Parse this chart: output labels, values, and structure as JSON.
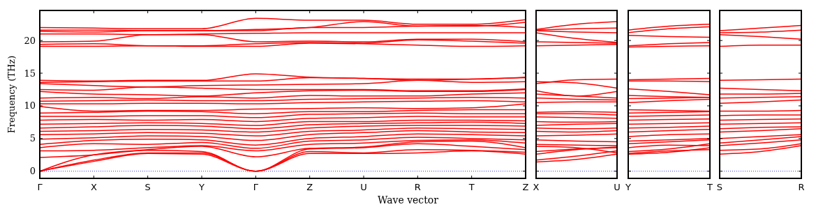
{
  "chart_data": [
    {
      "type": "line",
      "ylabel": "Frequency (THz)",
      "xlabel": "Wave vector",
      "categories": [
        "Γ",
        "X",
        "S",
        "Y",
        "Γ",
        "Z",
        "U",
        "R",
        "T",
        "Z"
      ],
      "ylim": [
        -1.1,
        24.6
      ],
      "yticks": [
        0,
        5,
        10,
        15,
        20
      ],
      "grid": false,
      "marker": "none",
      "line_style": "solid",
      "ref_lines": [
        {
          "axis": "y",
          "value": 0,
          "color": "#0000ff",
          "line_style": "dotted"
        }
      ],
      "series": [
        {
          "color": "#ff0000",
          "values": [
            0,
            1.5,
            2.7,
            2.6,
            0,
            2.7,
            2.7,
            2.8,
            3.1,
            2.6
          ]
        },
        {
          "color": "#ff0000",
          "values": [
            0,
            1.7,
            2.8,
            2.8,
            0,
            3.0,
            2.8,
            3.3,
            3.2,
            2.9
          ]
        },
        {
          "color": "#ff0000",
          "values": [
            0,
            2.5,
            3.2,
            3.0,
            0,
            3.4,
            3.6,
            4.2,
            3.8,
            3.3
          ]
        },
        {
          "color": "#ff0000",
          "values": [
            2.1,
            2.5,
            3.3,
            3.8,
            2.2,
            3.5,
            3.7,
            4.5,
            4.6,
            3.6
          ]
        },
        {
          "color": "#ff0000",
          "values": [
            3.1,
            3.2,
            3.6,
            3.9,
            3.1,
            4.1,
            4.3,
            4.7,
            4.8,
            4.3
          ]
        },
        {
          "color": "#ff0000",
          "values": [
            3.6,
            4.2,
            4.1,
            4.4,
            3.5,
            4.6,
            4.8,
            5.2,
            5.0,
            4.8
          ]
        },
        {
          "color": "#ff0000",
          "values": [
            4.1,
            4.7,
            4.9,
            4.8,
            4.0,
            5.0,
            5.3,
            5.7,
            5.6,
            5.4
          ]
        },
        {
          "color": "#ff0000",
          "values": [
            4.9,
            5.1,
            5.4,
            5.3,
            4.7,
            5.6,
            5.9,
            6.2,
            6.0,
            5.9
          ]
        },
        {
          "color": "#ff0000",
          "values": [
            5.6,
            5.7,
            5.9,
            5.8,
            5.4,
            6.1,
            6.3,
            6.6,
            6.5,
            6.4
          ]
        },
        {
          "color": "#ff0000",
          "values": [
            6.1,
            6.2,
            6.4,
            6.3,
            6.0,
            6.6,
            6.9,
            7.0,
            7.0,
            6.9
          ]
        },
        {
          "color": "#ff0000",
          "values": [
            6.6,
            6.8,
            7.0,
            6.9,
            6.5,
            7.1,
            7.3,
            7.4,
            7.5,
            7.3
          ]
        },
        {
          "color": "#ff0000",
          "values": [
            7.2,
            7.3,
            7.4,
            7.3,
            7.0,
            7.6,
            7.6,
            7.8,
            7.8,
            7.7
          ]
        },
        {
          "color": "#ff0000",
          "values": [
            7.8,
            7.9,
            7.8,
            7.9,
            7.6,
            8.1,
            8.2,
            8.4,
            8.3,
            8.3
          ]
        },
        {
          "color": "#ff0000",
          "values": [
            8.4,
            8.4,
            8.5,
            8.5,
            8.2,
            8.7,
            8.8,
            8.9,
            8.8,
            8.8
          ]
        },
        {
          "color": "#ff0000",
          "values": [
            8.9,
            9.0,
            9.2,
            9.1,
            8.8,
            9.1,
            9.1,
            9.3,
            9.4,
            9.4
          ]
        },
        {
          "color": "#ff0000",
          "values": [
            9.9,
            9.2,
            9.3,
            9.3,
            9.5,
            9.6,
            9.7,
            9.6,
            9.7,
            10.3
          ]
        },
        {
          "color": "#ff0000",
          "values": [
            10.3,
            10.3,
            10.4,
            10.4,
            10.3,
            10.5,
            10.6,
            10.7,
            10.8,
            10.6
          ]
        },
        {
          "color": "#ff0000",
          "values": [
            10.7,
            10.8,
            10.9,
            10.8,
            10.8,
            11.0,
            11.1,
            11.2,
            11.3,
            11.2
          ]
        },
        {
          "color": "#ff0000",
          "values": [
            11.2,
            11.3,
            11.1,
            11.4,
            11.2,
            11.6,
            11.5,
            11.5,
            11.8,
            12.0
          ]
        },
        {
          "color": "#ff0000",
          "values": [
            12.2,
            11.8,
            11.7,
            11.5,
            12.0,
            12.3,
            12.4,
            12.2,
            12.2,
            12.5
          ]
        },
        {
          "color": "#ff0000",
          "values": [
            12.5,
            12.4,
            12.9,
            12.7,
            12.5,
            12.5,
            12.5,
            12.3,
            12.3,
            12.6
          ]
        },
        {
          "color": "#ff0000",
          "values": [
            13.4,
            13.1,
            12.9,
            13.1,
            13.2,
            13.3,
            13.4,
            13.9,
            13.6,
            13.7
          ]
        },
        {
          "color": "#ff0000",
          "values": [
            13.6,
            13.7,
            13.8,
            13.8,
            13.8,
            14.3,
            14.2,
            13.9,
            14.1,
            14.3
          ]
        },
        {
          "color": "#ff0000",
          "values": [
            13.9,
            13.8,
            13.9,
            13.9,
            14.9,
            14.4,
            14.2,
            14.1,
            14.1,
            14.4
          ]
        },
        {
          "color": "#ff0000",
          "values": [
            19.1,
            19.1,
            19.2,
            19.1,
            19.1,
            19.6,
            19.5,
            19.3,
            19.1,
            19.2
          ]
        },
        {
          "color": "#ff0000",
          "values": [
            19.4,
            19.5,
            19.2,
            19.2,
            19.5,
            19.7,
            19.6,
            20.1,
            19.9,
            19.6
          ]
        },
        {
          "color": "#ff0000",
          "values": [
            19.8,
            19.9,
            20.9,
            20.9,
            19.8,
            19.9,
            19.8,
            20.2,
            20.2,
            19.8
          ]
        },
        {
          "color": "#ff0000",
          "values": [
            21.0,
            21.0,
            20.9,
            21.0,
            21.1,
            21.2,
            21.2,
            21.2,
            21.2,
            21.2
          ]
        },
        {
          "color": "#ff0000",
          "values": [
            21.4,
            21.3,
            21.5,
            21.5,
            21.5,
            22.0,
            22.0,
            22.2,
            22.3,
            22.0
          ]
        },
        {
          "color": "#ff0000",
          "values": [
            21.6,
            21.6,
            21.5,
            21.5,
            21.7,
            22.0,
            22.9,
            22.2,
            22.2,
            22.8
          ]
        },
        {
          "color": "#ff0000",
          "values": [
            22.0,
            21.9,
            21.8,
            21.8,
            23.4,
            23.1,
            23.1,
            22.5,
            22.5,
            23.2
          ]
        }
      ]
    },
    {
      "type": "line",
      "categories": [
        "X",
        null,
        "U"
      ],
      "ylim": [
        -1.1,
        24.6
      ],
      "yticks": [
        0,
        5,
        10,
        15,
        20
      ],
      "tick_labels": "x",
      "grid": false,
      "marker": "none",
      "line_style": "solid",
      "ref_lines": [
        {
          "axis": "y",
          "value": 0,
          "color": "#0000ff",
          "line_style": "dotted"
        }
      ],
      "series": [
        {
          "color": "#ff0000",
          "values": [
            1.4,
            1.8,
            2.6
          ]
        },
        {
          "color": "#ff0000",
          "values": [
            1.7,
            2.3,
            3.1
          ]
        },
        {
          "color": "#ff0000",
          "values": [
            2.6,
            3.3,
            3.7
          ]
        },
        {
          "color": "#ff0000",
          "values": [
            3.0,
            3.4,
            3.6
          ]
        },
        {
          "color": "#ff0000",
          "values": [
            3.8,
            3.6,
            2.8
          ]
        },
        {
          "color": "#ff0000",
          "values": [
            4.1,
            4.0,
            3.9
          ]
        },
        {
          "color": "#ff0000",
          "values": [
            4.8,
            4.6,
            4.5
          ]
        },
        {
          "color": "#ff0000",
          "values": [
            5.4,
            5.5,
            5.7
          ]
        },
        {
          "color": "#ff0000",
          "values": [
            6.1,
            6.0,
            6.2
          ]
        },
        {
          "color": "#ff0000",
          "values": [
            6.6,
            6.5,
            6.6
          ]
        },
        {
          "color": "#ff0000",
          "values": [
            7.0,
            7.2,
            7.3
          ]
        },
        {
          "color": "#ff0000",
          "values": [
            7.6,
            7.5,
            7.6
          ]
        },
        {
          "color": "#ff0000",
          "values": [
            8.3,
            8.2,
            8.1
          ]
        },
        {
          "color": "#ff0000",
          "values": [
            8.8,
            8.8,
            8.6
          ]
        },
        {
          "color": "#ff0000",
          "values": [
            9.0,
            9.1,
            9.0
          ]
        },
        {
          "color": "#ff0000",
          "values": [
            10.5,
            10.6,
            10.6
          ]
        },
        {
          "color": "#ff0000",
          "values": [
            11.2,
            11.0,
            10.9
          ]
        },
        {
          "color": "#ff0000",
          "values": [
            11.8,
            11.5,
            11.2
          ]
        },
        {
          "color": "#ff0000",
          "values": [
            12.3,
            11.5,
            12.2
          ]
        },
        {
          "color": "#ff0000",
          "values": [
            13.4,
            14.0,
            14.1
          ]
        },
        {
          "color": "#ff0000",
          "values": [
            13.7,
            13.5,
            12.7
          ]
        },
        {
          "color": "#ff0000",
          "values": [
            19.2,
            19.3,
            19.4
          ]
        },
        {
          "color": "#ff0000",
          "values": [
            19.8,
            19.7,
            19.6
          ]
        },
        {
          "color": "#ff0000",
          "values": [
            21.2,
            20.3,
            19.7
          ]
        },
        {
          "color": "#ff0000",
          "values": [
            21.5,
            21.3,
            21.2
          ]
        },
        {
          "color": "#ff0000",
          "values": [
            21.6,
            21.8,
            21.9
          ]
        },
        {
          "color": "#ff0000",
          "values": [
            21.7,
            22.5,
            22.9
          ]
        }
      ]
    },
    {
      "type": "line",
      "categories": [
        "Y",
        null,
        "T"
      ],
      "ylim": [
        -1.1,
        24.6
      ],
      "yticks": [
        0,
        5,
        10,
        15,
        20
      ],
      "tick_labels": "x",
      "grid": false,
      "marker": "none",
      "line_style": "solid",
      "ref_lines": [
        {
          "axis": "y",
          "value": 0,
          "color": "#0000ff",
          "line_style": "dotted"
        }
      ],
      "series": [
        {
          "color": "#ff0000",
          "values": [
            2.6,
            2.9,
            3.6
          ]
        },
        {
          "color": "#ff0000",
          "values": [
            2.7,
            3.1,
            3.3
          ]
        },
        {
          "color": "#ff0000",
          "values": [
            3.0,
            3.4,
            4.2
          ]
        },
        {
          "color": "#ff0000",
          "values": [
            3.6,
            4.0,
            3.9
          ]
        },
        {
          "color": "#ff0000",
          "values": [
            4.2,
            4.5,
            4.8
          ]
        },
        {
          "color": "#ff0000",
          "values": [
            4.6,
            4.8,
            5.0
          ]
        },
        {
          "color": "#ff0000",
          "values": [
            5.3,
            5.6,
            5.7
          ]
        },
        {
          "color": "#ff0000",
          "values": [
            6.0,
            6.2,
            6.4
          ]
        },
        {
          "color": "#ff0000",
          "values": [
            6.6,
            6.7,
            6.9
          ]
        },
        {
          "color": "#ff0000",
          "values": [
            7.2,
            7.3,
            7.4
          ]
        },
        {
          "color": "#ff0000",
          "values": [
            7.8,
            7.9,
            8.0
          ]
        },
        {
          "color": "#ff0000",
          "values": [
            8.4,
            8.5,
            8.6
          ]
        },
        {
          "color": "#ff0000",
          "values": [
            8.9,
            9.0,
            9.1
          ]
        },
        {
          "color": "#ff0000",
          "values": [
            9.4,
            9.3,
            9.2
          ]
        },
        {
          "color": "#ff0000",
          "values": [
            10.5,
            10.8,
            11.0
          ]
        },
        {
          "color": "#ff0000",
          "values": [
            11.1,
            11.2,
            11.3
          ]
        },
        {
          "color": "#ff0000",
          "values": [
            11.6,
            11.4,
            11.3
          ]
        },
        {
          "color": "#ff0000",
          "values": [
            12.6,
            12.2,
            11.7
          ]
        },
        {
          "color": "#ff0000",
          "values": [
            13.8,
            13.8,
            13.7
          ]
        },
        {
          "color": "#ff0000",
          "values": [
            14.0,
            14.1,
            14.2
          ]
        },
        {
          "color": "#ff0000",
          "values": [
            19.0,
            19.1,
            19.2
          ]
        },
        {
          "color": "#ff0000",
          "values": [
            19.2,
            19.5,
            19.7
          ]
        },
        {
          "color": "#ff0000",
          "values": [
            20.8,
            20.6,
            20.5
          ]
        },
        {
          "color": "#ff0000",
          "values": [
            21.2,
            21.8,
            22.1
          ]
        },
        {
          "color": "#ff0000",
          "values": [
            21.6,
            22.2,
            22.5
          ]
        }
      ]
    },
    {
      "type": "line",
      "categories": [
        "S",
        null,
        "R"
      ],
      "ylim": [
        -1.1,
        24.6
      ],
      "yticks": [
        0,
        5,
        10,
        15,
        20
      ],
      "tick_labels": "x",
      "grid": false,
      "marker": "none",
      "line_style": "solid",
      "ref_lines": [
        {
          "axis": "y",
          "value": 0,
          "color": "#0000ff",
          "line_style": "dotted"
        }
      ],
      "series": [
        {
          "color": "#ff0000",
          "values": [
            2.6,
            3.0,
            3.9
          ]
        },
        {
          "color": "#ff0000",
          "values": [
            3.2,
            3.4,
            4.2
          ]
        },
        {
          "color": "#ff0000",
          "values": [
            3.9,
            4.3,
            4.8
          ]
        },
        {
          "color": "#ff0000",
          "values": [
            4.3,
            4.8,
            5.3
          ]
        },
        {
          "color": "#ff0000",
          "values": [
            5.0,
            5.3,
            5.6
          ]
        },
        {
          "color": "#ff0000",
          "values": [
            6.0,
            6.2,
            6.5
          ]
        },
        {
          "color": "#ff0000",
          "values": [
            6.5,
            6.7,
            6.8
          ]
        },
        {
          "color": "#ff0000",
          "values": [
            7.2,
            7.3,
            7.4
          ]
        },
        {
          "color": "#ff0000",
          "values": [
            7.8,
            7.9,
            8.0
          ]
        },
        {
          "color": "#ff0000",
          "values": [
            8.5,
            8.6,
            8.6
          ]
        },
        {
          "color": "#ff0000",
          "values": [
            9.2,
            9.2,
            9.3
          ]
        },
        {
          "color": "#ff0000",
          "values": [
            10.4,
            10.6,
            10.9
          ]
        },
        {
          "color": "#ff0000",
          "values": [
            11.2,
            11.3,
            11.4
          ]
        },
        {
          "color": "#ff0000",
          "values": [
            11.8,
            11.8,
            11.9
          ]
        },
        {
          "color": "#ff0000",
          "values": [
            12.7,
            12.5,
            12.3
          ]
        },
        {
          "color": "#ff0000",
          "values": [
            13.9,
            14.0,
            14.1
          ]
        },
        {
          "color": "#ff0000",
          "values": [
            19.1,
            19.3,
            19.3
          ]
        },
        {
          "color": "#ff0000",
          "values": [
            20.9,
            20.6,
            20.2
          ]
        },
        {
          "color": "#ff0000",
          "values": [
            21.2,
            21.3,
            21.6
          ]
        },
        {
          "color": "#ff0000",
          "values": [
            21.5,
            21.9,
            22.3
          ]
        }
      ]
    }
  ]
}
